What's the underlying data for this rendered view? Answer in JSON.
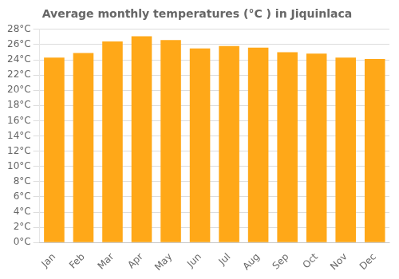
{
  "chart_data": {
    "type": "bar",
    "title": "Average monthly temperatures (°C ) in Jiquinlaca",
    "categories": [
      "Jan",
      "Feb",
      "Mar",
      "Apr",
      "May",
      "Jun",
      "Jul",
      "Aug",
      "Sep",
      "Oct",
      "Nov",
      "Dec"
    ],
    "values": [
      24.3,
      24.9,
      26.4,
      27.1,
      26.6,
      25.5,
      25.8,
      25.6,
      25.0,
      24.8,
      24.3,
      24.1
    ],
    "color": "#FFA818",
    "ylim": [
      0,
      28
    ],
    "yticks": [
      {
        "value": 0,
        "label": "0°C"
      },
      {
        "value": 2,
        "label": "2°C"
      },
      {
        "value": 4,
        "label": "4°C"
      },
      {
        "value": 6,
        "label": "6°C"
      },
      {
        "value": 8,
        "label": "8°C"
      },
      {
        "value": 10,
        "label": "10°C"
      },
      {
        "value": 12,
        "label": "12°C"
      },
      {
        "value": 14,
        "label": "14°C"
      },
      {
        "value": 16,
        "label": "16°C"
      },
      {
        "value": 18,
        "label": "18°C"
      },
      {
        "value": 20,
        "label": "20°C"
      },
      {
        "value": 22,
        "label": "22°C"
      },
      {
        "value": 24,
        "label": "24°C"
      },
      {
        "value": 26,
        "label": "26°C"
      },
      {
        "value": 28,
        "label": "28°C"
      }
    ],
    "grid": true
  }
}
